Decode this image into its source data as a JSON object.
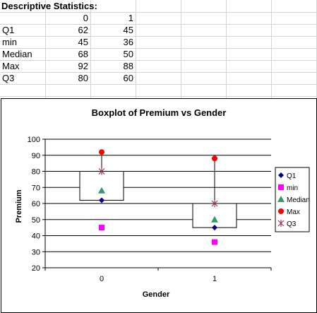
{
  "sheet": {
    "title": "Descriptive Statistics:",
    "headers": [
      "0",
      "1"
    ],
    "rows": [
      {
        "label": "Q1",
        "values": [
          "62",
          "45"
        ]
      },
      {
        "label": "min",
        "values": [
          "45",
          "36"
        ]
      },
      {
        "label": "Median",
        "values": [
          "68",
          "50"
        ]
      },
      {
        "label": "Max",
        "values": [
          "92",
          "88"
        ]
      },
      {
        "label": "Q3",
        "values": [
          "80",
          "60"
        ]
      }
    ]
  },
  "chart_data": {
    "type": "box",
    "title": "Boxplot of Premium vs Gender",
    "xlabel": "Gender",
    "ylabel": "Premium",
    "categories": [
      "0",
      "1"
    ],
    "ylim": [
      20,
      100
    ],
    "yticks": [
      "20",
      "30",
      "40",
      "50",
      "60",
      "70",
      "80",
      "90",
      "100"
    ],
    "grid": true,
    "legend_position": "right",
    "series": [
      {
        "name": "Q1",
        "values": [
          62,
          45
        ],
        "color": "#000080",
        "marker": "diamond"
      },
      {
        "name": "min",
        "values": [
          45,
          36
        ],
        "color": "#ff00ff",
        "marker": "square"
      },
      {
        "name": "Median",
        "values": [
          68,
          50
        ],
        "color": "#339966",
        "marker": "triangle"
      },
      {
        "name": "Max",
        "values": [
          92,
          88
        ],
        "color": "#ff0000",
        "marker": "circle"
      },
      {
        "name": "Q3",
        "values": [
          80,
          60
        ],
        "color": "#993366",
        "marker": "star"
      }
    ]
  }
}
